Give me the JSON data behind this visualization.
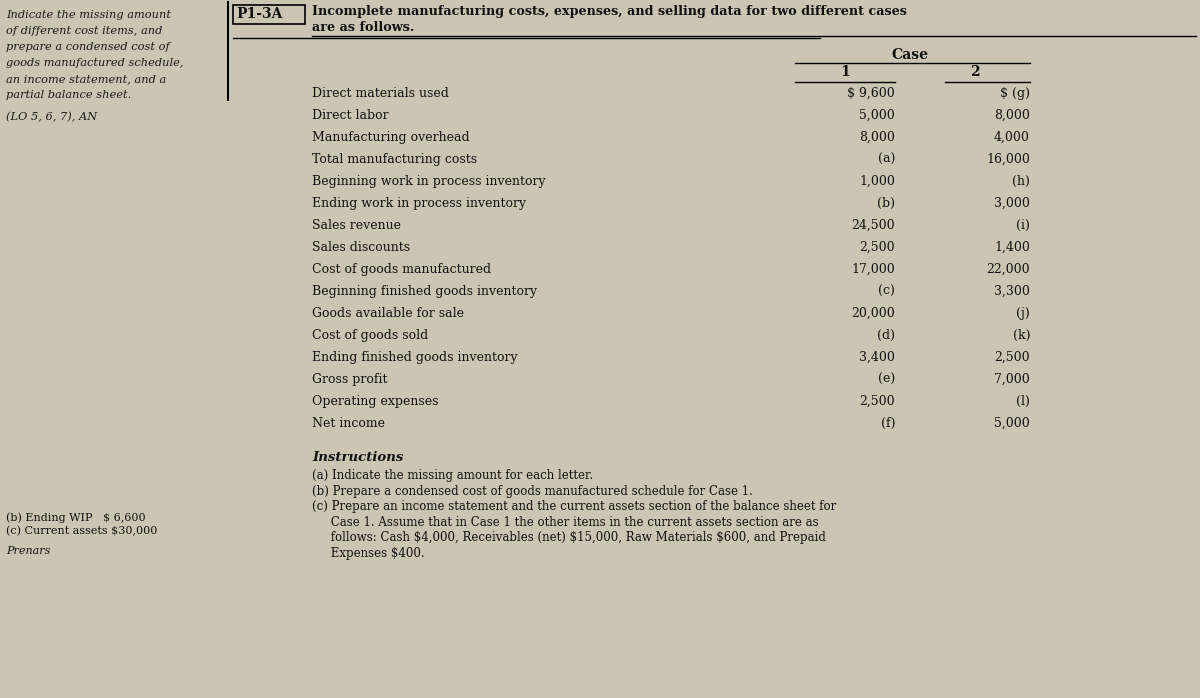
{
  "bg_color": "#cdc5b4",
  "fig_width": 12.0,
  "fig_height": 6.98,
  "left_text_lines": [
    "Indicate the missing amount",
    "of different cost items, and",
    "prepare a condensed cost of",
    "goods manufactured schedule,",
    "an income statement, and a",
    "partial balance sheet."
  ],
  "lo_text": "(LO 5, 6, 7), AN",
  "problem_label": "P1-3A",
  "problem_title": "Incomplete manufacturing costs, expenses, and selling data for two different cases",
  "problem_title2": "are as follows.",
  "table_rows": [
    {
      "label": "Direct materials used",
      "case1": "$ 9,600",
      "case2": "$ (g)"
    },
    {
      "label": "Direct labor",
      "case1": "5,000",
      "case2": "8,000"
    },
    {
      "label": "Manufacturing overhead",
      "case1": "8,000",
      "case2": "4,000"
    },
    {
      "label": "Total manufacturing costs",
      "case1": "(a)",
      "case2": "16,000"
    },
    {
      "label": "Beginning work in process inventory",
      "case1": "1,000",
      "case2": "(h)"
    },
    {
      "label": "Ending work in process inventory",
      "case1": "(b)",
      "case2": "3,000"
    },
    {
      "label": "Sales revenue",
      "case1": "24,500",
      "case2": "(i)"
    },
    {
      "label": "Sales discounts",
      "case1": "2,500",
      "case2": "1,400"
    },
    {
      "label": "Cost of goods manufactured",
      "case1": "17,000",
      "case2": "22,000"
    },
    {
      "label": "Beginning finished goods inventory",
      "case1": "(c)",
      "case2": "3,300"
    },
    {
      "label": "Goods available for sale",
      "case1": "20,000",
      "case2": "(j)"
    },
    {
      "label": "Cost of goods sold",
      "case1": "(d)",
      "case2": "(k)"
    },
    {
      "label": "Ending finished goods inventory",
      "case1": "3,400",
      "case2": "2,500"
    },
    {
      "label": "Gross profit",
      "case1": "(e)",
      "case2": "7,000"
    },
    {
      "label": "Operating expenses",
      "case1": "2,500",
      "case2": "(l)"
    },
    {
      "label": "Net income",
      "case1": "(f)",
      "case2": "5,000"
    }
  ],
  "instructions_title": "Instructions",
  "instructions": [
    "(a) Indicate the missing amount for each letter.",
    "(b) Prepare a condensed cost of goods manufactured schedule for Case 1.",
    "(c) Prepare an income statement and the current assets section of the balance sheet for",
    "     Case 1. Assume that in Case 1 the other items in the current assets section are as",
    "     follows: Cash $4,000, Receivables (net) $15,000, Raw Materials $600, and Prepaid",
    "     Expenses $400."
  ],
  "bottom_left_line1": "(b) Ending WIP   $ 6,600",
  "bottom_left_line2": "(c) Current assets $30,000",
  "bottom_left_last": "Prenars"
}
